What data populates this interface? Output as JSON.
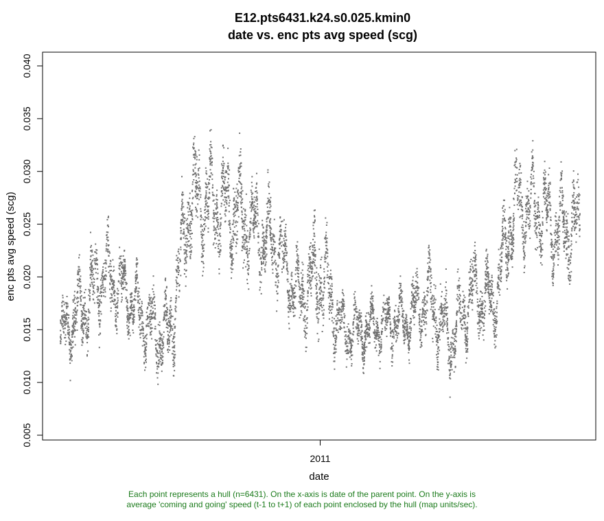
{
  "chart_data": {
    "type": "scatter",
    "title": "E12.pts6431.k24.s0.025.kmin0",
    "subtitle": "date vs. enc pts avg speed (scg)",
    "xlabel": "date",
    "ylabel": "enc pts avg speed (scg)",
    "x_range": [
      "2010-01",
      "2011-12"
    ],
    "ylim": [
      0.0045,
      0.041
    ],
    "y_ticks": [
      "0.005",
      "0.010",
      "0.015",
      "0.020",
      "0.025",
      "0.030",
      "0.035",
      "0.040"
    ],
    "x_ticks": [
      {
        "label": "2011",
        "x": "2011-01"
      }
    ],
    "grid": false,
    "marker_color": "#707070",
    "n_points": 6431,
    "series": [
      {
        "x": [
          "2010-01",
          "2010-02",
          "2010-03",
          "2010-04",
          "2010-05",
          "2010-06",
          "2010-07",
          "2010-08",
          "2010-09",
          "2010-10",
          "2010-11",
          "2010-12",
          "2011-01",
          "2011-02",
          "2011-03",
          "2011-04",
          "2011-05",
          "2011-06",
          "2011-07",
          "2011-08",
          "2011-09",
          "2011-10",
          "2011-11",
          "2011-12"
        ],
        "y_center": [
          0.0145,
          0.0168,
          0.0205,
          0.0185,
          0.0155,
          0.014,
          0.0275,
          0.0268,
          0.0265,
          0.0245,
          0.023,
          0.018,
          0.0205,
          0.015,
          0.015,
          0.0155,
          0.016,
          0.018,
          0.014,
          0.0185,
          0.0175,
          0.027,
          0.0265,
          0.0245
        ],
        "y_spread": [
          0.003,
          0.0045,
          0.0045,
          0.0035,
          0.0035,
          0.0045,
          0.0055,
          0.005,
          0.0055,
          0.0045,
          0.0045,
          0.0035,
          0.006,
          0.003,
          0.003,
          0.003,
          0.003,
          0.004,
          0.004,
          0.004,
          0.004,
          0.005,
          0.0045,
          0.005
        ]
      }
    ]
  },
  "caption": {
    "line1": "Each point represents a hull (n=6431). On the x-axis is date of the parent point. On the y-axis is",
    "line2": "average 'coming and going' speed (t-1 to t+1) of each point enclosed by the hull (map units/sec)."
  }
}
